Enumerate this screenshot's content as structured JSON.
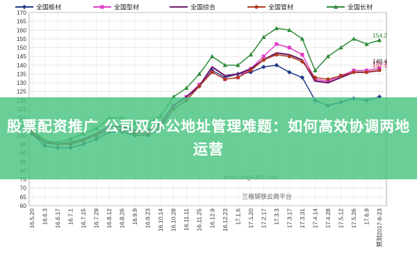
{
  "banner": {
    "text": "股票配资推广 公司双办公地址管理难题：如何高效协调两地运营"
  },
  "watermark": {
    "url": "www.lange360.com",
    "platform": "兰格钢铁云商平台"
  },
  "chart_data": {
    "type": "line",
    "title": "",
    "xlabel": "",
    "ylabel": "",
    "ylim": [
      60,
      170
    ],
    "yticks": [
      60,
      65,
      70,
      75,
      80,
      85,
      90,
      95,
      100,
      105,
      110,
      115,
      120,
      125,
      130,
      135,
      140,
      145,
      150,
      155,
      160,
      165,
      170
    ],
    "grid": true,
    "legend_position": "top",
    "x": [
      "16.5.20",
      "16.6.3",
      "16.6.17",
      "16.7.1",
      "16.7.15",
      "16.7.29",
      "16.8.12",
      "16.8.26",
      "16.9.9",
      "16.9.23",
      "16.10.14",
      "16.10.28",
      "16.11.11",
      "16.11.25",
      "16.12.9",
      "16.12.23",
      "17.1.6",
      "17.1.20",
      "17.2.17",
      "17.3.3",
      "17.3.17",
      "17.3.31",
      "17.4.14",
      "17.4.28",
      "17.5.12",
      "17.5.26",
      "17.6.9",
      "预测2017-6-23"
    ],
    "series": [
      {
        "name": "全国板材",
        "color": "#1f3a8a",
        "marker": "diamond",
        "end_label": "",
        "values": [
          101,
          94,
          93,
          93,
          95,
          98,
          102,
          102,
          100,
          100,
          104,
          115,
          120,
          128,
          137,
          133,
          135,
          136,
          139,
          140,
          136,
          133,
          120,
          117,
          119,
          121,
          120,
          122
        ]
      },
      {
        "name": "全国型材",
        "color": "#e040c8",
        "marker": "square",
        "end_label": "138.3",
        "values": [
          102,
          96,
          95,
          95,
          97,
          100,
          105,
          105,
          102,
          102,
          106,
          117,
          122,
          129,
          136,
          132,
          133,
          138,
          145,
          152,
          150,
          146,
          132,
          131,
          134,
          137,
          137,
          138.3
        ]
      },
      {
        "name": "全国综合",
        "color": "#6a1b6a",
        "marker": "none",
        "end_label": "",
        "values": [
          101,
          96,
          95,
          96,
          98,
          101,
          105,
          105,
          103,
          103,
          107,
          117,
          122,
          128,
          139,
          134,
          135,
          138,
          143,
          147,
          146,
          143,
          131,
          130,
          133,
          136,
          136,
          137
        ]
      },
      {
        "name": "全国管材",
        "color": "#b03a1e",
        "marker": "circle",
        "end_label": "137.1",
        "values": [
          102,
          97,
          95,
          95,
          97,
          100,
          103,
          103,
          101,
          101,
          105,
          115,
          120,
          128,
          136,
          132,
          133,
          137,
          143,
          146,
          145,
          142,
          133,
          132,
          134,
          136,
          136,
          137.1
        ]
      },
      {
        "name": "全国长材",
        "color": "#2e8b3a",
        "marker": "triangle",
        "end_label": "154.2",
        "values": [
          104,
          97,
          96,
          98,
          101,
          104,
          110,
          110,
          107,
          107,
          111,
          122,
          127,
          135,
          145,
          140,
          140,
          146,
          156,
          161,
          160,
          155,
          137,
          145,
          150,
          155,
          152,
          154.2
        ]
      }
    ],
    "annotations": [
      "140.4",
      "137.1"
    ]
  }
}
